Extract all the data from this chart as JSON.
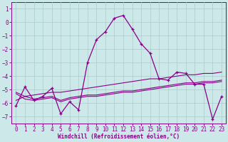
{
  "x": [
    0,
    1,
    2,
    3,
    4,
    5,
    6,
    7,
    8,
    9,
    10,
    11,
    12,
    13,
    14,
    15,
    16,
    17,
    18,
    19,
    20,
    21,
    22,
    23
  ],
  "main_line": [
    -6.2,
    -4.8,
    -5.8,
    -5.5,
    -4.9,
    -6.8,
    -5.9,
    -6.5,
    -3.0,
    -1.3,
    -0.7,
    0.3,
    0.5,
    -0.5,
    -1.6,
    -2.3,
    -4.2,
    -4.3,
    -3.7,
    -3.8,
    -4.6,
    -4.6,
    -7.2,
    -5.5
  ],
  "trend_line": [
    -5.8,
    -5.5,
    -5.4,
    -5.3,
    -5.2,
    -5.2,
    -5.1,
    -5.0,
    -4.9,
    -4.8,
    -4.7,
    -4.6,
    -4.5,
    -4.4,
    -4.3,
    -4.2,
    -4.2,
    -4.1,
    -4.0,
    -3.9,
    -3.9,
    -3.8,
    -3.8,
    -3.7
  ],
  "ref_line1": [
    -5.2,
    -5.5,
    -5.7,
    -5.6,
    -5.5,
    -5.8,
    -5.6,
    -5.5,
    -5.4,
    -5.4,
    -5.3,
    -5.2,
    -5.1,
    -5.1,
    -5.0,
    -4.9,
    -4.8,
    -4.7,
    -4.6,
    -4.5,
    -4.5,
    -4.4,
    -4.4,
    -4.3
  ],
  "ref_line2": [
    -5.3,
    -5.7,
    -5.8,
    -5.7,
    -5.6,
    -5.9,
    -5.7,
    -5.6,
    -5.5,
    -5.5,
    -5.4,
    -5.3,
    -5.2,
    -5.2,
    -5.1,
    -5.0,
    -4.9,
    -4.8,
    -4.7,
    -4.6,
    -4.6,
    -4.5,
    -4.5,
    -4.4
  ],
  "ylim": [
    -7.5,
    1.5
  ],
  "xlim": [
    -0.5,
    23.5
  ],
  "yticks": [
    1,
    0,
    -1,
    -2,
    -3,
    -4,
    -5,
    -6,
    -7
  ],
  "xticks": [
    0,
    1,
    2,
    3,
    4,
    5,
    6,
    7,
    8,
    9,
    10,
    11,
    12,
    13,
    14,
    15,
    16,
    17,
    18,
    19,
    20,
    21,
    22,
    23
  ],
  "xlabel": "Windchill (Refroidissement éolien,°C)",
  "line_color": "#880088",
  "bg_color": "#cde8e8",
  "grid_color": "#aacccc",
  "spine_color": "#880088"
}
